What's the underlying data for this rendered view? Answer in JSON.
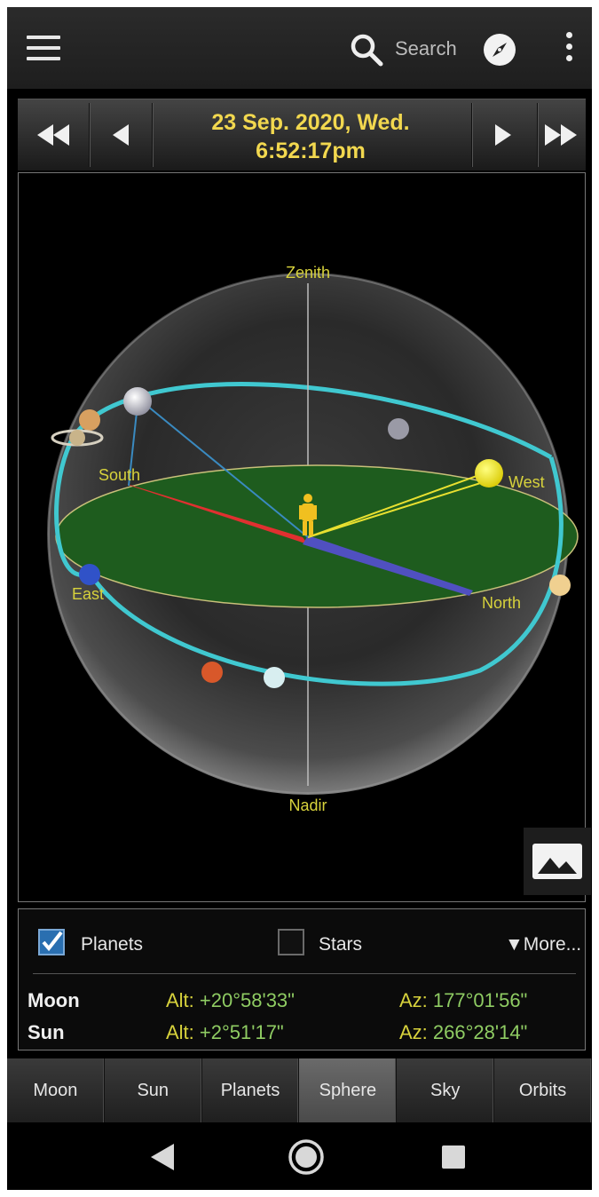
{
  "appbar": {
    "search_label": "Search",
    "icons": [
      "menu-icon",
      "search-icon",
      "compass-icon",
      "overflow-menu-icon"
    ]
  },
  "datebar": {
    "date": "23 Sep. 2020,  Wed.",
    "time": "6:52:17pm",
    "buttons": [
      "fast-rewind-icon",
      "step-back-icon",
      "step-forward-icon",
      "fast-forward-icon"
    ]
  },
  "sphere": {
    "labels": {
      "zenith": "Zenith",
      "nadir": "Nadir",
      "south": "South",
      "west": "West",
      "east": "East",
      "north": "North"
    },
    "colors": {
      "horizon": "#1e5c1e",
      "ecliptic": "#40c8d0",
      "sun": "#f0e010",
      "observer": "#f0c020"
    }
  },
  "filters": {
    "planets": {
      "label": "Planets",
      "checked": true
    },
    "stars": {
      "label": "Stars",
      "checked": false
    },
    "more_label": "More..."
  },
  "positions": [
    {
      "name": "Moon",
      "alt_label": "Alt: ",
      "alt": "+20°58'33\"",
      "az_label": "Az: ",
      "az": "177°01'56\""
    },
    {
      "name": "Sun",
      "alt_label": "Alt: ",
      "alt": "+2°51'17\"",
      "az_label": "Az: ",
      "az": "266°28'14\""
    }
  ],
  "tabs": [
    {
      "label": "Moon",
      "active": false
    },
    {
      "label": "Sun",
      "active": false
    },
    {
      "label": "Planets",
      "active": false
    },
    {
      "label": "Sphere",
      "active": true
    },
    {
      "label": "Sky",
      "active": false
    },
    {
      "label": "Orbits",
      "active": false
    }
  ]
}
